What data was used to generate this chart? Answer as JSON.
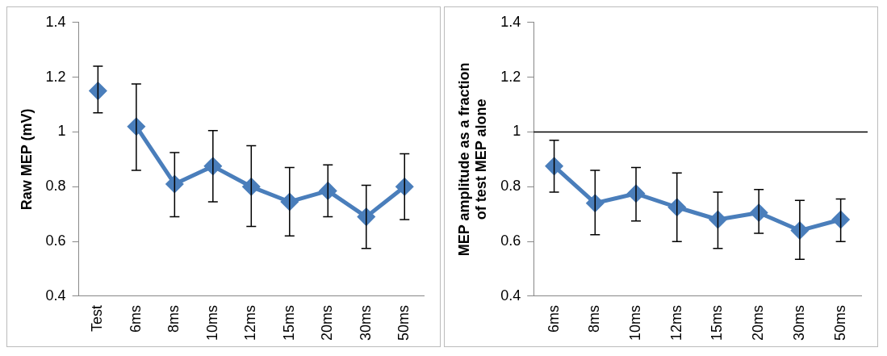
{
  "chart_data": [
    {
      "type": "line",
      "ylabel": "Raw MEP (mV)",
      "categories": [
        "Test",
        "6ms",
        "8ms",
        "10ms",
        "12ms",
        "15ms",
        "20ms",
        "30ms",
        "50ms"
      ],
      "ylim": [
        0.4,
        1.4
      ],
      "yticks": [
        0.4,
        0.6,
        0.8,
        1,
        1.2,
        1.4
      ],
      "grid": false,
      "legend": false,
      "marker": "diamond",
      "series": [
        {
          "color": "#4a7ebb",
          "values": [
            1.15,
            null,
            null,
            null,
            null,
            null,
            null,
            null,
            null
          ],
          "errors": [
            [
              1.07,
              1.24
            ],
            null,
            null,
            null,
            null,
            null,
            null,
            null,
            null
          ]
        },
        {
          "color": "#4a7ebb",
          "values": [
            null,
            1.02,
            0.81,
            0.875,
            0.8,
            0.745,
            0.785,
            0.69,
            0.8
          ],
          "errors": [
            null,
            [
              0.86,
              1.175
            ],
            [
              0.69,
              0.925
            ],
            [
              0.745,
              1.005
            ],
            [
              0.655,
              0.95
            ],
            [
              0.62,
              0.87
            ],
            [
              0.69,
              0.88
            ],
            [
              0.575,
              0.805
            ],
            [
              0.68,
              0.92
            ]
          ]
        }
      ]
    },
    {
      "type": "line",
      "ylabel": "MEP amplitude as a fraction of test MEP alone",
      "categories": [
        "6ms",
        "8ms",
        "10ms",
        "12ms",
        "15ms",
        "20ms",
        "30ms",
        "50ms"
      ],
      "ylim": [
        0.4,
        1.4
      ],
      "yticks": [
        0.4,
        0.6,
        0.8,
        1,
        1.2,
        1.4
      ],
      "grid": false,
      "legend": false,
      "marker": "diamond",
      "ref_lines": [
        {
          "axis": "y",
          "value": 1,
          "color": "#000000"
        }
      ],
      "series": [
        {
          "color": "#4a7ebb",
          "values": [
            0.875,
            0.74,
            0.775,
            0.725,
            0.68,
            0.705,
            0.64,
            0.68
          ],
          "errors": [
            [
              0.78,
              0.97
            ],
            [
              0.625,
              0.86
            ],
            [
              0.675,
              0.87
            ],
            [
              0.6,
              0.85
            ],
            [
              0.575,
              0.78
            ],
            [
              0.63,
              0.79
            ],
            [
              0.535,
              0.75
            ],
            [
              0.6,
              0.755
            ]
          ]
        }
      ]
    }
  ]
}
